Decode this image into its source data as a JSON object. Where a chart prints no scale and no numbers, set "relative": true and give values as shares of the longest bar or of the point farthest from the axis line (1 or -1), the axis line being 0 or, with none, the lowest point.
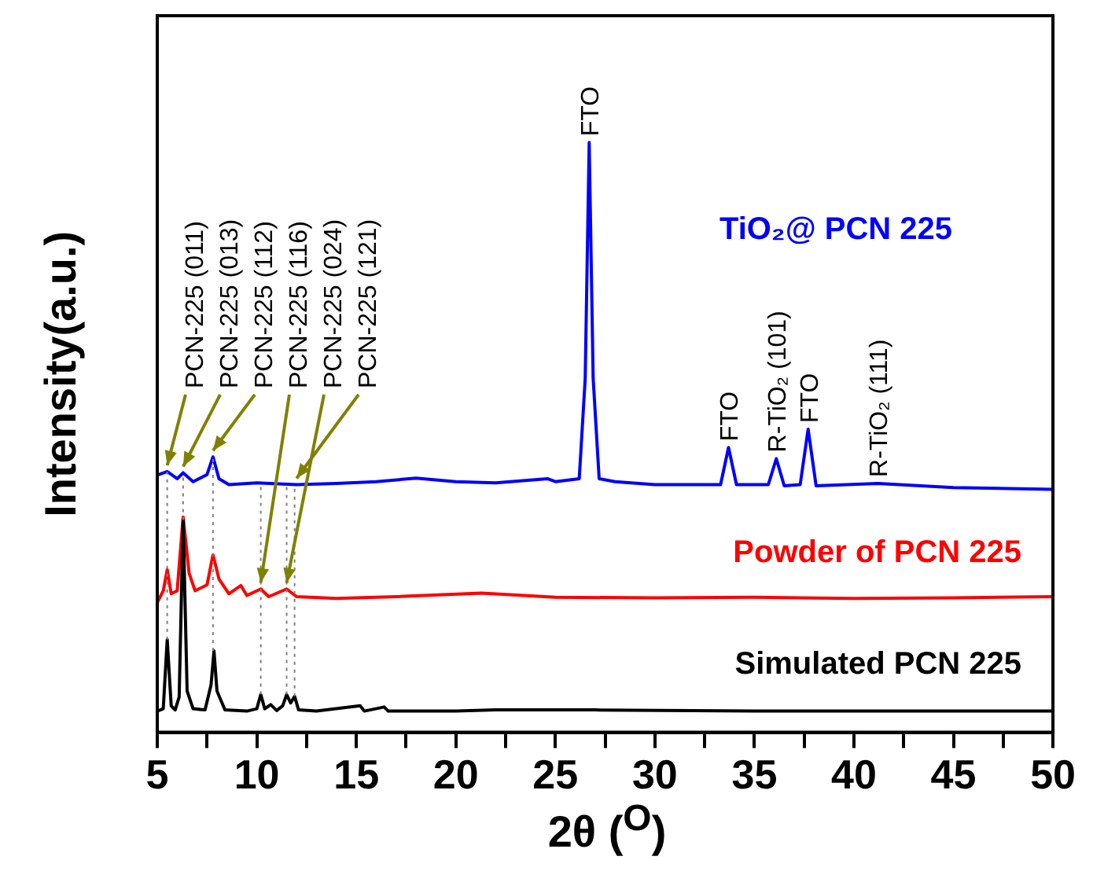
{
  "chart_data": {
    "type": "line",
    "relative": true,
    "xlabel": "2θ ($^{O}$)",
    "ylabel": "Intensity(a.u.)",
    "xlim": [
      5,
      50
    ],
    "xticks": [
      5,
      {
        "value": 7.5,
        "label": null
      },
      10,
      {
        "value": 12.5,
        "label": null
      },
      15,
      {
        "value": 17.5,
        "label": null
      },
      20,
      {
        "value": 22.5,
        "label": null
      },
      25,
      {
        "value": 27.5,
        "label": null
      },
      30,
      {
        "value": 32.5,
        "label": null
      },
      35,
      {
        "value": 37.5,
        "label": null
      },
      40,
      {
        "value": 42.5,
        "label": null
      },
      45,
      {
        "value": 47.5,
        "label": null
      },
      50
    ],
    "grid": false,
    "legend": false,
    "marker": "none",
    "line_style": "solid",
    "series": [
      {
        "name": "TiO₂@ PCN 225",
        "color": "#0000ff",
        "x": [
          5,
          5.5,
          6.0,
          6.3,
          6.8,
          7.5,
          7.8,
          8.1,
          8.6,
          10,
          12,
          14,
          16,
          18,
          20,
          22,
          24.6,
          25,
          26.2,
          26.5,
          26.7,
          26.9,
          27.2,
          28,
          30,
          33.3,
          33.7,
          34.1,
          35.7,
          36.1,
          36.5,
          37.3,
          37.7,
          38.1,
          41.2,
          45,
          50
        ],
        "values": [
          0.436,
          0.442,
          0.43,
          0.44,
          0.425,
          0.437,
          0.467,
          0.43,
          0.42,
          0.423,
          0.42,
          0.422,
          0.425,
          0.431,
          0.425,
          0.423,
          0.43,
          0.425,
          0.43,
          0.6,
          1.0,
          0.6,
          0.43,
          0.425,
          0.42,
          0.42,
          0.483,
          0.42,
          0.42,
          0.464,
          0.418,
          0.42,
          0.514,
          0.418,
          0.422,
          0.415,
          0.412
        ]
      },
      {
        "name": "Powder of PCN 225",
        "color": "#ff0000",
        "x": [
          5,
          5.3,
          5.5,
          5.7,
          6.0,
          6.3,
          6.6,
          6.9,
          7.5,
          7.8,
          8.1,
          8.6,
          9.2,
          9.5,
          10.2,
          10.6,
          11.5,
          12,
          14,
          17,
          21.3,
          25,
          30,
          35,
          40,
          45,
          50
        ],
        "values": [
          0.22,
          0.24,
          0.276,
          0.235,
          0.24,
          0.365,
          0.27,
          0.24,
          0.25,
          0.301,
          0.26,
          0.235,
          0.249,
          0.232,
          0.243,
          0.23,
          0.243,
          0.23,
          0.227,
          0.23,
          0.236,
          0.229,
          0.228,
          0.229,
          0.227,
          0.228,
          0.23
        ]
      },
      {
        "name": "Simulated PCN 225",
        "color": "#000000",
        "x": [
          5,
          5.3,
          5.5,
          5.7,
          5.9,
          6.1,
          6.3,
          6.5,
          6.8,
          7.4,
          7.7,
          7.85,
          8.0,
          8.4,
          9.5,
          10.0,
          10.2,
          10.4,
          10.7,
          11.0,
          11.3,
          11.5,
          11.7,
          11.9,
          12.1,
          13,
          15.2,
          15.4,
          16.4,
          16.6,
          20,
          22,
          27,
          35,
          40,
          50
        ],
        "values": [
          0.036,
          0.04,
          0.157,
          0.045,
          0.038,
          0.06,
          0.36,
          0.07,
          0.04,
          0.038,
          0.08,
          0.138,
          0.07,
          0.038,
          0.036,
          0.04,
          0.064,
          0.04,
          0.047,
          0.037,
          0.045,
          0.064,
          0.05,
          0.061,
          0.038,
          0.036,
          0.045,
          0.036,
          0.043,
          0.036,
          0.036,
          0.038,
          0.038,
          0.036,
          0.036,
          0.036
        ]
      }
    ],
    "ref_lines": [
      {
        "axis": "x",
        "value": 5.5,
        "color": "#808080",
        "line_style": "dotted"
      },
      {
        "axis": "x",
        "value": 6.3,
        "color": "#808080",
        "line_style": "dotted"
      },
      {
        "axis": "x",
        "value": 7.8,
        "color": "#808080",
        "line_style": "dotted"
      },
      {
        "axis": "x",
        "value": 10.2,
        "color": "#808080",
        "line_style": "dotted"
      },
      {
        "axis": "x",
        "value": 11.5,
        "color": "#808080",
        "line_style": "dotted"
      },
      {
        "axis": "x",
        "value": 11.9,
        "color": "#808080",
        "line_style": "dotted"
      }
    ],
    "annotations": [
      {
        "text": "PCN-225 (011)",
        "x": 5.5,
        "y": 0.442
      },
      {
        "text": "PCN-225 (013)",
        "x": 6.3,
        "y": 0.44
      },
      {
        "text": "PCN-225 (112)",
        "x": 7.8,
        "y": 0.467
      },
      {
        "text": "PCN-225 (116)",
        "x": 10.2,
        "y": 0.243
      },
      {
        "text": "PCN-225 (024)",
        "x": 11.5,
        "y": 0.243
      },
      {
        "text": "PCN-225 (121)",
        "x": 12,
        "y": 0.42
      },
      {
        "text": "FTO",
        "x": 26.7,
        "y": 1.0
      },
      {
        "text": "FTO",
        "x": 33.7,
        "y": 0.483
      },
      {
        "text": "R-TiO₂ (101)",
        "x": 36.1,
        "y": 0.464
      },
      {
        "text": "FTO",
        "x": 37.7,
        "y": 0.514
      },
      {
        "text": "R-TiO₂ (111)",
        "x": 41.2,
        "y": 0.422
      }
    ]
  }
}
